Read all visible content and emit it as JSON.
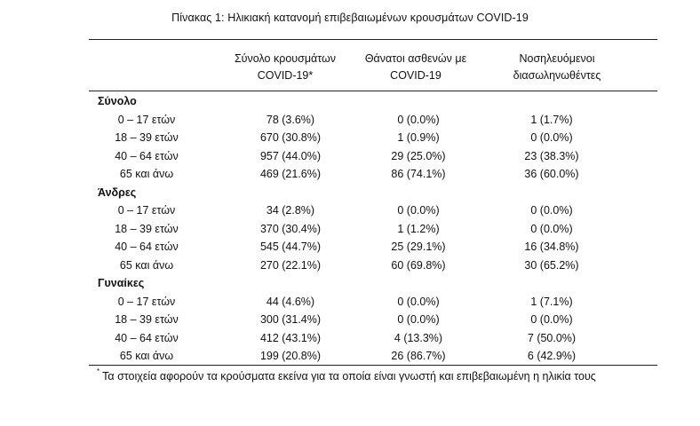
{
  "title": "Πίνακας 1: Ηλικιακή κατανομή επιβεβαιωμένων κρουσμάτων COVID-19",
  "headers": {
    "cases": [
      "Σύνολο κρουσμάτων",
      "COVID-19*"
    ],
    "deaths": [
      "Θάνατοι ασθενών με",
      "COVID-19"
    ],
    "intubated": [
      "Νοσηλευόμενοι",
      "διασωληνωθέντες"
    ]
  },
  "groups": [
    {
      "label": "Σύνολο",
      "rows": [
        {
          "age": "0 – 17 ετών",
          "cases": "78 (3.6%)",
          "deaths": "0 (0.0%)",
          "intubated": "1 (1.7%)"
        },
        {
          "age": "18 – 39 ετών",
          "cases": "670 (30.8%)",
          "deaths": "1 (0.9%)",
          "intubated": "0 (0.0%)"
        },
        {
          "age": "40 – 64 ετών",
          "cases": "957 (44.0%)",
          "deaths": "29 (25.0%)",
          "intubated": "23 (38.3%)"
        },
        {
          "age": "65 και άνω",
          "cases": "469 (21.6%)",
          "deaths": "86 (74.1%)",
          "intubated": "36 (60.0%)"
        }
      ]
    },
    {
      "label": "Άνδρες",
      "rows": [
        {
          "age": "0 – 17 ετών",
          "cases": "34 (2.8%)",
          "deaths": "0 (0.0%)",
          "intubated": "0 (0.0%)"
        },
        {
          "age": "18 – 39 ετών",
          "cases": "370 (30.4%)",
          "deaths": "1 (1.2%)",
          "intubated": "0 (0.0%)"
        },
        {
          "age": "40 – 64 ετών",
          "cases": "545 (44.7%)",
          "deaths": "25 (29.1%)",
          "intubated": "16 (34.8%)"
        },
        {
          "age": "65 και άνω",
          "cases": "270 (22.1%)",
          "deaths": "60 (69.8%)",
          "intubated": "30 (65.2%)"
        }
      ]
    },
    {
      "label": "Γυναίκες",
      "rows": [
        {
          "age": "0 – 17 ετών",
          "cases": "44 (4.6%)",
          "deaths": "0 (0.0%)",
          "intubated": "1 (7.1%)"
        },
        {
          "age": "18 – 39 ετών",
          "cases": "300 (31.4%)",
          "deaths": "0 (0.0%)",
          "intubated": "0 (0.0%)"
        },
        {
          "age": "40 – 64 ετών",
          "cases": "412 (43.1%)",
          "deaths": "4 (13.3%)",
          "intubated": "7 (50.0%)"
        },
        {
          "age": "65 και άνω",
          "cases": "199 (20.8%)",
          "deaths": "26 (86.7%)",
          "intubated": "6 (42.9%)"
        }
      ]
    }
  ],
  "footnote": {
    "marker": "*",
    "text": "Τα στοιχεία αφορούν τα κρούσματα εκείνα για τα οποία είναι γνωστή και επιβεβαιωμένη η ηλικία τους"
  }
}
